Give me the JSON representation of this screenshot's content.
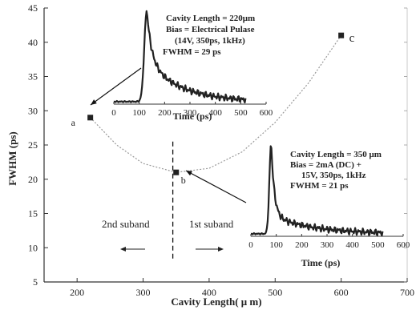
{
  "chart_data": {
    "type": "scatter",
    "xlabel": "Cavity Length( μ m)",
    "ylabel": "FWHM (ps)",
    "xlim": [
      150,
      700
    ],
    "ylim": [
      5,
      45
    ],
    "x_ticks": [
      "200",
      "300",
      "400",
      "500",
      "600",
      "700"
    ],
    "y_ticks": [
      "5",
      "10",
      "15",
      "20",
      "25",
      "30",
      "35",
      "40",
      "45"
    ],
    "points": [
      {
        "label": "a",
        "x": 220,
        "y": 29
      },
      {
        "label": "b",
        "x": 350,
        "y": 21
      },
      {
        "label": "c",
        "x": 600,
        "y": 41
      }
    ],
    "point_labels": [
      "a",
      "b",
      "c"
    ],
    "fit_curve": [
      [
        220,
        29
      ],
      [
        260,
        25
      ],
      [
        300,
        22.3
      ],
      [
        350,
        21
      ],
      [
        400,
        21.6
      ],
      [
        450,
        24
      ],
      [
        500,
        28.3
      ],
      [
        550,
        34
      ],
      [
        600,
        41
      ]
    ],
    "subband_divider_x": 345,
    "subband_labels": [
      "2nd suband",
      "1st suband"
    ],
    "insets": [
      {
        "xlabel": "Time (ps)",
        "x_ticks": [
          "0",
          "100",
          "200",
          "300",
          "400",
          "500",
          "600"
        ],
        "annotations": [
          "Cavity Length = 220μm",
          "Bias = Electrical Pulase",
          "(14V, 350ps, 1kHz)",
          "FWHM = 29 ps"
        ],
        "peak_time": 130
      },
      {
        "xlabel": "Time (ps)",
        "x_ticks": [
          "0",
          "100",
          "200",
          "300",
          "400",
          "500",
          "600"
        ],
        "annotations": [
          "Cavity Length = 350 μm",
          "Bias = 2mA (DC) +",
          "15V, 350ps, 1kHz",
          "FWHM = 21 ps"
        ],
        "peak_time": 80
      }
    ]
  }
}
